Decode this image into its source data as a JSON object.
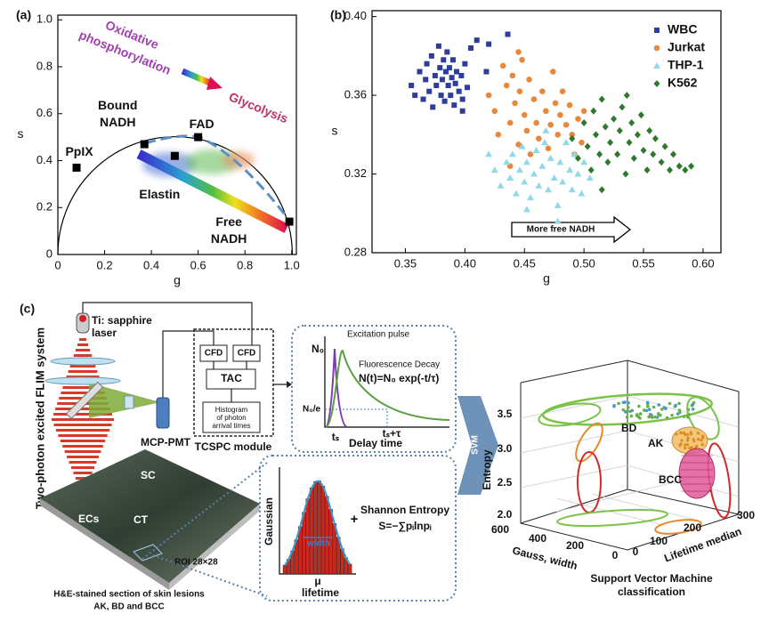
{
  "chart_data": [
    {
      "type": "scatter",
      "panel_label": "(a)",
      "xlabel": "g",
      "ylabel": "s",
      "x": [
        0.08,
        0.37,
        0.6,
        0.5,
        0.99
      ],
      "values": [
        0.37,
        0.47,
        0.5,
        0.42,
        0.14
      ],
      "point_labels": [
        [
          "PpIX"
        ],
        [
          "Bound",
          "NADH"
        ],
        [
          "FAD"
        ],
        [
          "Elastin"
        ],
        [
          "Free",
          "NADH"
        ]
      ],
      "annotations": [
        [
          "Oxidative",
          "phosphorylation"
        ],
        [
          "Glycolysis"
        ]
      ],
      "color": "#000000",
      "xlim": [
        0,
        1.02
      ],
      "ylim": [
        0,
        1.02
      ],
      "xticks": [
        0,
        0.2,
        0.4,
        0.6,
        0.8,
        {
          "value": 1,
          "label": "1.0"
        }
      ],
      "yticks": [
        0,
        0.2,
        0.4,
        0.6,
        0.8,
        {
          "value": 1,
          "label": "1.0"
        }
      ],
      "grid": false
    },
    {
      "type": "scatter",
      "panel_label": "(b)",
      "xlabel": "g",
      "ylabel": "s",
      "xlim": [
        0.322,
        0.615
      ],
      "ylim": [
        0.28,
        0.403
      ],
      "xticks": [
        0.35,
        {
          "value": 0.4,
          "label": "0.40"
        },
        0.45,
        {
          "value": 0.5,
          "label": "0.50"
        },
        0.55,
        {
          "value": 0.6,
          "label": "0.60"
        }
      ],
      "yticks": [
        0.28,
        0.32,
        0.36,
        {
          "value": 0.4,
          "label": "0.40"
        }
      ],
      "grid": false,
      "legend": "upper right",
      "annotation": "More free NADH",
      "series": [
        {
          "name": "WBC",
          "color": "#2e3d9b",
          "marker": "square",
          "x": [
            0.355,
            0.358,
            0.362,
            0.365,
            0.367,
            0.368,
            0.37,
            0.372,
            0.373,
            0.375,
            0.376,
            0.378,
            0.379,
            0.38,
            0.381,
            0.382,
            0.383,
            0.384,
            0.385,
            0.386,
            0.387,
            0.388,
            0.389,
            0.39,
            0.391,
            0.392,
            0.393,
            0.395,
            0.397,
            0.398,
            0.4,
            0.402,
            0.405,
            0.41,
            0.418,
            0.42,
            0.436,
            0.398
          ],
          "values": [
            0.365,
            0.36,
            0.372,
            0.358,
            0.368,
            0.376,
            0.362,
            0.38,
            0.354,
            0.37,
            0.365,
            0.385,
            0.374,
            0.36,
            0.368,
            0.378,
            0.357,
            0.372,
            0.382,
            0.365,
            0.374,
            0.36,
            0.369,
            0.378,
            0.355,
            0.366,
            0.372,
            0.362,
            0.37,
            0.352,
            0.376,
            0.364,
            0.384,
            0.388,
            0.372,
            0.386,
            0.391,
            0.358
          ]
        },
        {
          "name": "Jurkat",
          "color": "#e8883a",
          "marker": "circle",
          "x": [
            0.42,
            0.425,
            0.428,
            0.432,
            0.435,
            0.438,
            0.44,
            0.442,
            0.445,
            0.446,
            0.448,
            0.45,
            0.452,
            0.454,
            0.455,
            0.458,
            0.46,
            0.462,
            0.465,
            0.468,
            0.47,
            0.472,
            0.474,
            0.476,
            0.478,
            0.48,
            0.482,
            0.485,
            0.488,
            0.49,
            0.492,
            0.495,
            0.498,
            0.5,
            0.445,
            0.438
          ],
          "values": [
            0.36,
            0.352,
            0.34,
            0.375,
            0.365,
            0.346,
            0.37,
            0.356,
            0.335,
            0.362,
            0.378,
            0.35,
            0.342,
            0.368,
            0.33,
            0.358,
            0.346,
            0.338,
            0.362,
            0.352,
            0.333,
            0.345,
            0.372,
            0.356,
            0.34,
            0.35,
            0.362,
            0.345,
            0.355,
            0.34,
            0.33,
            0.348,
            0.336,
            0.352,
            0.382,
            0.324
          ]
        },
        {
          "name": "THP-1",
          "color": "#8fd9e8",
          "marker": "triangle",
          "x": [
            0.42,
            0.425,
            0.43,
            0.435,
            0.438,
            0.44,
            0.443,
            0.446,
            0.448,
            0.45,
            0.452,
            0.455,
            0.458,
            0.46,
            0.462,
            0.465,
            0.467,
            0.47,
            0.472,
            0.475,
            0.478,
            0.48,
            0.482,
            0.485,
            0.488,
            0.49,
            0.492,
            0.495,
            0.498,
            0.5,
            0.505,
            0.468,
            0.478,
            0.452
          ],
          "values": [
            0.33,
            0.322,
            0.314,
            0.326,
            0.318,
            0.33,
            0.31,
            0.322,
            0.334,
            0.316,
            0.326,
            0.308,
            0.32,
            0.332,
            0.314,
            0.324,
            0.336,
            0.312,
            0.328,
            0.318,
            0.304,
            0.326,
            0.316,
            0.336,
            0.322,
            0.312,
            0.33,
            0.32,
            0.31,
            0.326,
            0.318,
            0.342,
            0.296,
            0.302
          ]
        },
        {
          "name": "K562",
          "color": "#2d7a2d",
          "marker": "diamond",
          "x": [
            0.49,
            0.495,
            0.5,
            0.503,
            0.506,
            0.508,
            0.51,
            0.513,
            0.515,
            0.518,
            0.52,
            0.522,
            0.525,
            0.528,
            0.53,
            0.532,
            0.535,
            0.538,
            0.54,
            0.542,
            0.545,
            0.548,
            0.55,
            0.553,
            0.555,
            0.558,
            0.56,
            0.565,
            0.568,
            0.572,
            0.575,
            0.58,
            0.585,
            0.59,
            0.515,
            0.536
          ],
          "values": [
            0.338,
            0.328,
            0.346,
            0.334,
            0.322,
            0.352,
            0.34,
            0.33,
            0.358,
            0.344,
            0.326,
            0.336,
            0.348,
            0.33,
            0.342,
            0.354,
            0.32,
            0.336,
            0.346,
            0.328,
            0.34,
            0.35,
            0.332,
            0.322,
            0.342,
            0.33,
            0.338,
            0.326,
            0.334,
            0.322,
            0.33,
            0.324,
            0.322,
            0.324,
            0.312,
            0.36
          ]
        }
      ]
    }
  ],
  "diagram": {
    "panel_label": "(c)",
    "system_label": "Two-photon excited FLIM system",
    "laser": [
      "Ti: sapphire",
      "laser"
    ],
    "cfd": [
      "CFD",
      "CFD"
    ],
    "tac": "TAC",
    "histogram": [
      "Histogram",
      "of photon",
      "arrival times"
    ],
    "detector": "MCP-PMT",
    "tcspc": "TCSPC module",
    "decay": {
      "excitation": "Excitation pulse",
      "fluorescence": "Fluorescence Decay",
      "equation": "N(t)=N₀ exp(-t/τ)",
      "n0": "N₀",
      "n0e": "N₀/e",
      "ts": "tₛ",
      "tstau": "tₛ+τ",
      "xlabel": "Delay time"
    },
    "tissue": {
      "sc": "SC",
      "ecs": "ECs",
      "ct": "CT",
      "roi": "ROI 28×28",
      "caption": [
        "H&E-stained section of skin lesions",
        "AK, BD and BCC"
      ]
    },
    "features": {
      "ylabel": "Gaussian",
      "width": "width",
      "mu": "μ",
      "xlabel": "lifetime",
      "plus": "+",
      "entropy": "Shannon Entropy",
      "formula": "S=−∑pᵢlnpᵢ"
    },
    "svm": "SVM",
    "plot3d": {
      "zlabel": "Entropy",
      "zticks": [
        "3.5",
        "3.0",
        "2.5",
        "2.0"
      ],
      "classes": [
        "BD",
        "AK",
        "BCC"
      ],
      "xticks": [
        "600",
        "400",
        "200",
        "0"
      ],
      "xlabel": "Gauss, width",
      "yticks": [
        "0",
        "100",
        "200",
        "300"
      ],
      "ylabel": "Lifetime median",
      "caption": [
        "Support Vector Machine",
        "classification"
      ]
    }
  }
}
